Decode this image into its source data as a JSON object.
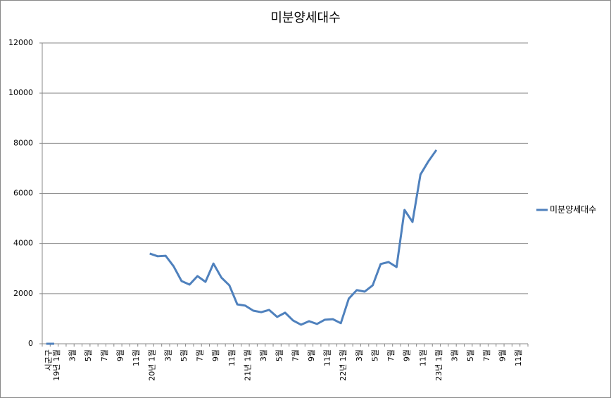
{
  "chart_data": {
    "type": "line",
    "title": "미분양세대수",
    "categories": [
      "시군구",
      "19년 1월",
      null,
      "3월",
      null,
      "5월",
      null,
      "7월",
      null,
      "9월",
      null,
      "11월",
      null,
      "20년 1월",
      null,
      "3월",
      null,
      "5월",
      null,
      "7월",
      null,
      "9월",
      null,
      "11월",
      null,
      "21년 1월",
      null,
      "3월",
      null,
      "5월",
      null,
      "7월",
      null,
      "9월",
      null,
      "11월",
      null,
      "22년 1월",
      null,
      "3월",
      null,
      "5월",
      null,
      "7월",
      null,
      "9월",
      null,
      "11월",
      null,
      "23년 1월",
      null,
      "3월",
      null,
      "5월",
      null,
      "7월",
      null,
      "9월",
      null,
      "11월",
      null
    ],
    "series": [
      {
        "name": "미분양세대수",
        "color": "#4f81bd",
        "values": [
          0,
          0,
          null,
          null,
          null,
          null,
          null,
          null,
          null,
          null,
          null,
          null,
          null,
          3600,
          3490,
          3510,
          3090,
          2500,
          2360,
          2700,
          2470,
          3200,
          2640,
          2330,
          1570,
          1520,
          1320,
          1260,
          1350,
          1070,
          1240,
          930,
          760,
          900,
          790,
          960,
          980,
          820,
          1800,
          2140,
          2080,
          2330,
          3180,
          3260,
          3060,
          5340,
          4860,
          6750,
          7280,
          7730,
          null,
          null,
          null,
          null,
          null,
          null,
          null,
          null,
          null,
          null,
          null
        ]
      }
    ],
    "ylim": [
      0,
      12000
    ],
    "yticks": [
      0,
      2000,
      4000,
      6000,
      8000,
      10000,
      12000
    ],
    "grid": true,
    "legend": "right"
  }
}
